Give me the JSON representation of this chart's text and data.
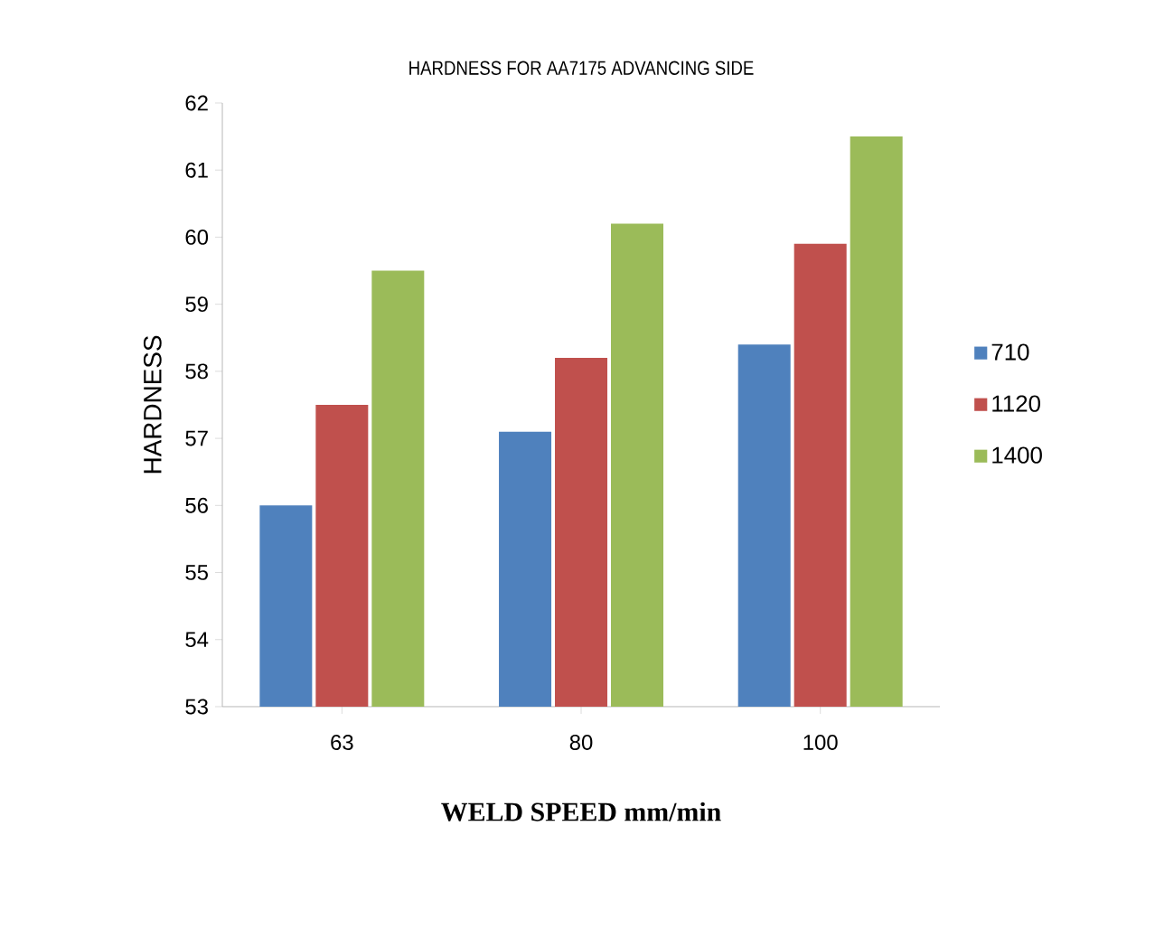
{
  "chart_data": {
    "type": "bar",
    "title": "HARDNESS FOR AA7175 ADVANCING SIDE",
    "xlabel": "WELD SPEED mm/min",
    "ylabel": "HARDNESS",
    "categories": [
      "63",
      "80",
      "100"
    ],
    "series": [
      {
        "name": "710",
        "color": "#4f81bd",
        "values": [
          56.0,
          57.1,
          58.4
        ]
      },
      {
        "name": "1120",
        "color": "#c0504d",
        "values": [
          57.5,
          58.2,
          59.9
        ]
      },
      {
        "name": "1400",
        "color": "#9bbb59",
        "values": [
          59.5,
          60.2,
          61.5
        ]
      }
    ],
    "ylim": [
      53,
      62
    ],
    "yticks": [
      53,
      54,
      55,
      56,
      57,
      58,
      59,
      60,
      61,
      62
    ],
    "grid": false,
    "legend": "right"
  }
}
